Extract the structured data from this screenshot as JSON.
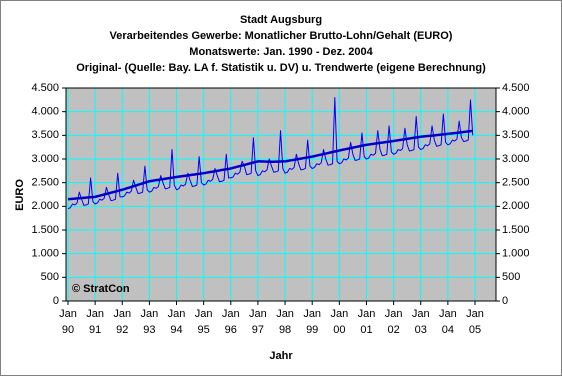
{
  "chart_data": {
    "type": "line",
    "title": "Stadt Augsburg",
    "subtitle": [
      "Verarbeitendes Gewerbe: Monatlicher Brutto-Lohn/Gehalt (EURO)",
      "Monatswerte: Jan. 1990 - Dez. 2004",
      "Original- (Quelle: Bay. LA f. Statistik u. DV) u. Trendwerte (eigene Berechnung)"
    ],
    "y_label": "EURO",
    "x_label": "Jahr",
    "annotation": "© StratCon",
    "categories": [
      "Jan 90",
      null,
      null,
      null,
      null,
      null,
      null,
      null,
      null,
      null,
      null,
      null,
      "Jan 91",
      null,
      null,
      null,
      null,
      null,
      null,
      null,
      null,
      null,
      null,
      null,
      "Jan 92",
      null,
      null,
      null,
      null,
      null,
      null,
      null,
      null,
      null,
      null,
      null,
      "Jan 93",
      null,
      null,
      null,
      null,
      null,
      null,
      null,
      null,
      null,
      null,
      null,
      "Jan 94",
      null,
      null,
      null,
      null,
      null,
      null,
      null,
      null,
      null,
      null,
      null,
      "Jan 95",
      null,
      null,
      null,
      null,
      null,
      null,
      null,
      null,
      null,
      null,
      null,
      "Jan 96",
      null,
      null,
      null,
      null,
      null,
      null,
      null,
      null,
      null,
      null,
      null,
      "Jan 97",
      null,
      null,
      null,
      null,
      null,
      null,
      null,
      null,
      null,
      null,
      null,
      "Jan 98",
      null,
      null,
      null,
      null,
      null,
      null,
      null,
      null,
      null,
      null,
      null,
      "Jan 99",
      null,
      null,
      null,
      null,
      null,
      null,
      null,
      null,
      null,
      null,
      null,
      "Jan 00",
      null,
      null,
      null,
      null,
      null,
      null,
      null,
      null,
      null,
      null,
      null,
      "Jan 01",
      null,
      null,
      null,
      null,
      null,
      null,
      null,
      null,
      null,
      null,
      null,
      "Jan 02",
      null,
      null,
      null,
      null,
      null,
      null,
      null,
      null,
      null,
      null,
      null,
      "Jan 03",
      null,
      null,
      null,
      null,
      null,
      null,
      null,
      null,
      null,
      null,
      null,
      "Jan 04",
      null,
      null,
      null,
      null,
      null,
      null,
      null,
      null,
      null,
      null,
      null,
      "Jan 05"
    ],
    "series": [
      {
        "color": "#0000ff",
        "width": 1,
        "values": [
          1950,
          1970,
          2050,
          2030,
          2070,
          2300,
          2150,
          2020,
          2030,
          2050,
          2600,
          2100,
          2050,
          2070,
          2150,
          2130,
          2170,
          2400,
          2250,
          2120,
          2130,
          2150,
          2700,
          2200,
          2200,
          2220,
          2300,
          2280,
          2320,
          2550,
          2400,
          2270,
          2280,
          2300,
          2850,
          2350,
          2300,
          2320,
          2400,
          2380,
          2420,
          2650,
          2500,
          2370,
          2380,
          2400,
          3200,
          2450,
          2350,
          2370,
          2450,
          2430,
          2470,
          2700,
          2550,
          2420,
          2430,
          2450,
          3050,
          2500,
          2450,
          2470,
          2550,
          2530,
          2570,
          2800,
          2650,
          2520,
          2530,
          2550,
          3100,
          2600,
          2600,
          2620,
          2700,
          2680,
          2720,
          2950,
          2850,
          2670,
          2680,
          2700,
          3450,
          2750,
          2650,
          2670,
          2750,
          2730,
          2770,
          3000,
          2850,
          2720,
          2730,
          2750,
          3600,
          2800,
          2700,
          2720,
          2800,
          2780,
          2820,
          3100,
          2900,
          2770,
          2780,
          2800,
          3400,
          2850,
          2800,
          2820,
          2900,
          2880,
          2920,
          3200,
          3000,
          2870,
          2880,
          2900,
          4300,
          2950,
          2900,
          2920,
          3000,
          2980,
          3020,
          3350,
          3100,
          2970,
          2980,
          3000,
          3550,
          3050,
          3000,
          3020,
          3100,
          3080,
          3120,
          3600,
          3200,
          3070,
          3080,
          3100,
          3700,
          3150,
          3100,
          3120,
          3200,
          3180,
          3220,
          3650,
          3300,
          3170,
          3180,
          3200,
          3900,
          3250,
          3200,
          3220,
          3300,
          3280,
          3320,
          3700,
          3400,
          3270,
          3280,
          3300,
          3950,
          3350,
          3300,
          3320,
          3400,
          3380,
          3420,
          3800,
          3450,
          3370,
          3380,
          3400,
          4250,
          3500,
          null
        ]
      },
      {
        "color": "#0000cc",
        "width": 2.5,
        "values": [
          2150,
          2154,
          2158,
          2163,
          2167,
          2171,
          2175,
          2179,
          2183,
          2188,
          2192,
          2196,
          2200,
          2213,
          2225,
          2238,
          2250,
          2263,
          2275,
          2288,
          2300,
          2313,
          2325,
          2338,
          2350,
          2365,
          2380,
          2395,
          2410,
          2425,
          2440,
          2455,
          2470,
          2485,
          2500,
          2515,
          2530,
          2538,
          2545,
          2553,
          2560,
          2568,
          2575,
          2583,
          2590,
          2598,
          2605,
          2613,
          2620,
          2627,
          2633,
          2640,
          2647,
          2653,
          2660,
          2667,
          2673,
          2680,
          2687,
          2693,
          2700,
          2708,
          2717,
          2725,
          2733,
          2742,
          2750,
          2758,
          2767,
          2775,
          2783,
          2792,
          2800,
          2813,
          2825,
          2838,
          2850,
          2863,
          2875,
          2888,
          2900,
          2913,
          2925,
          2938,
          2950,
          2950,
          2948,
          2946,
          2945,
          2944,
          2943,
          2943,
          2944,
          2945,
          2947,
          2950,
          2950,
          2958,
          2967,
          2975,
          2983,
          2992,
          3000,
          3008,
          3017,
          3025,
          3033,
          3042,
          3050,
          3061,
          3072,
          3083,
          3093,
          3104,
          3115,
          3126,
          3137,
          3148,
          3158,
          3169,
          3180,
          3190,
          3200,
          3210,
          3220,
          3230,
          3240,
          3250,
          3260,
          3270,
          3280,
          3290,
          3300,
          3307,
          3313,
          3320,
          3327,
          3333,
          3340,
          3347,
          3353,
          3360,
          3367,
          3373,
          3380,
          3388,
          3395,
          3403,
          3410,
          3418,
          3425,
          3433,
          3440,
          3448,
          3455,
          3463,
          3470,
          3475,
          3480,
          3485,
          3490,
          3495,
          3500,
          3505,
          3510,
          3515,
          3520,
          3525,
          3530,
          3536,
          3542,
          3548,
          3553,
          3559,
          3565,
          3571,
          3577,
          3583,
          3588,
          3594,
          null
        ]
      }
    ],
    "ylim": [
      0,
      4500
    ],
    "yticks": [
      0,
      500,
      {
        "value": 1000,
        "label": "1.000"
      },
      {
        "value": 1500,
        "label": "1.500"
      },
      {
        "value": 2000,
        "label": "2.000"
      },
      {
        "value": 2500,
        "label": "2.500"
      },
      {
        "value": 3000,
        "label": "3.000"
      },
      {
        "value": 3500,
        "label": "3.500"
      },
      {
        "value": 4000,
        "label": "4.000"
      },
      {
        "value": 4500,
        "label": "4.500"
      }
    ],
    "y2lim": [
      0,
      4500
    ],
    "y2ticks": [
      0,
      500,
      {
        "value": 1000,
        "label": "1.000"
      },
      {
        "value": 1500,
        "label": "1.500"
      },
      {
        "value": 2000,
        "label": "2.000"
      },
      {
        "value": 2500,
        "label": "2.500"
      },
      {
        "value": 3000,
        "label": "3.000"
      },
      {
        "value": 3500,
        "label": "3.500"
      },
      {
        "value": 4000,
        "label": "4.000"
      },
      {
        "value": 4500,
        "label": "4.500"
      }
    ],
    "grid": true,
    "grid_color": "#00ffff",
    "plot_background": "#c0c0c0"
  }
}
